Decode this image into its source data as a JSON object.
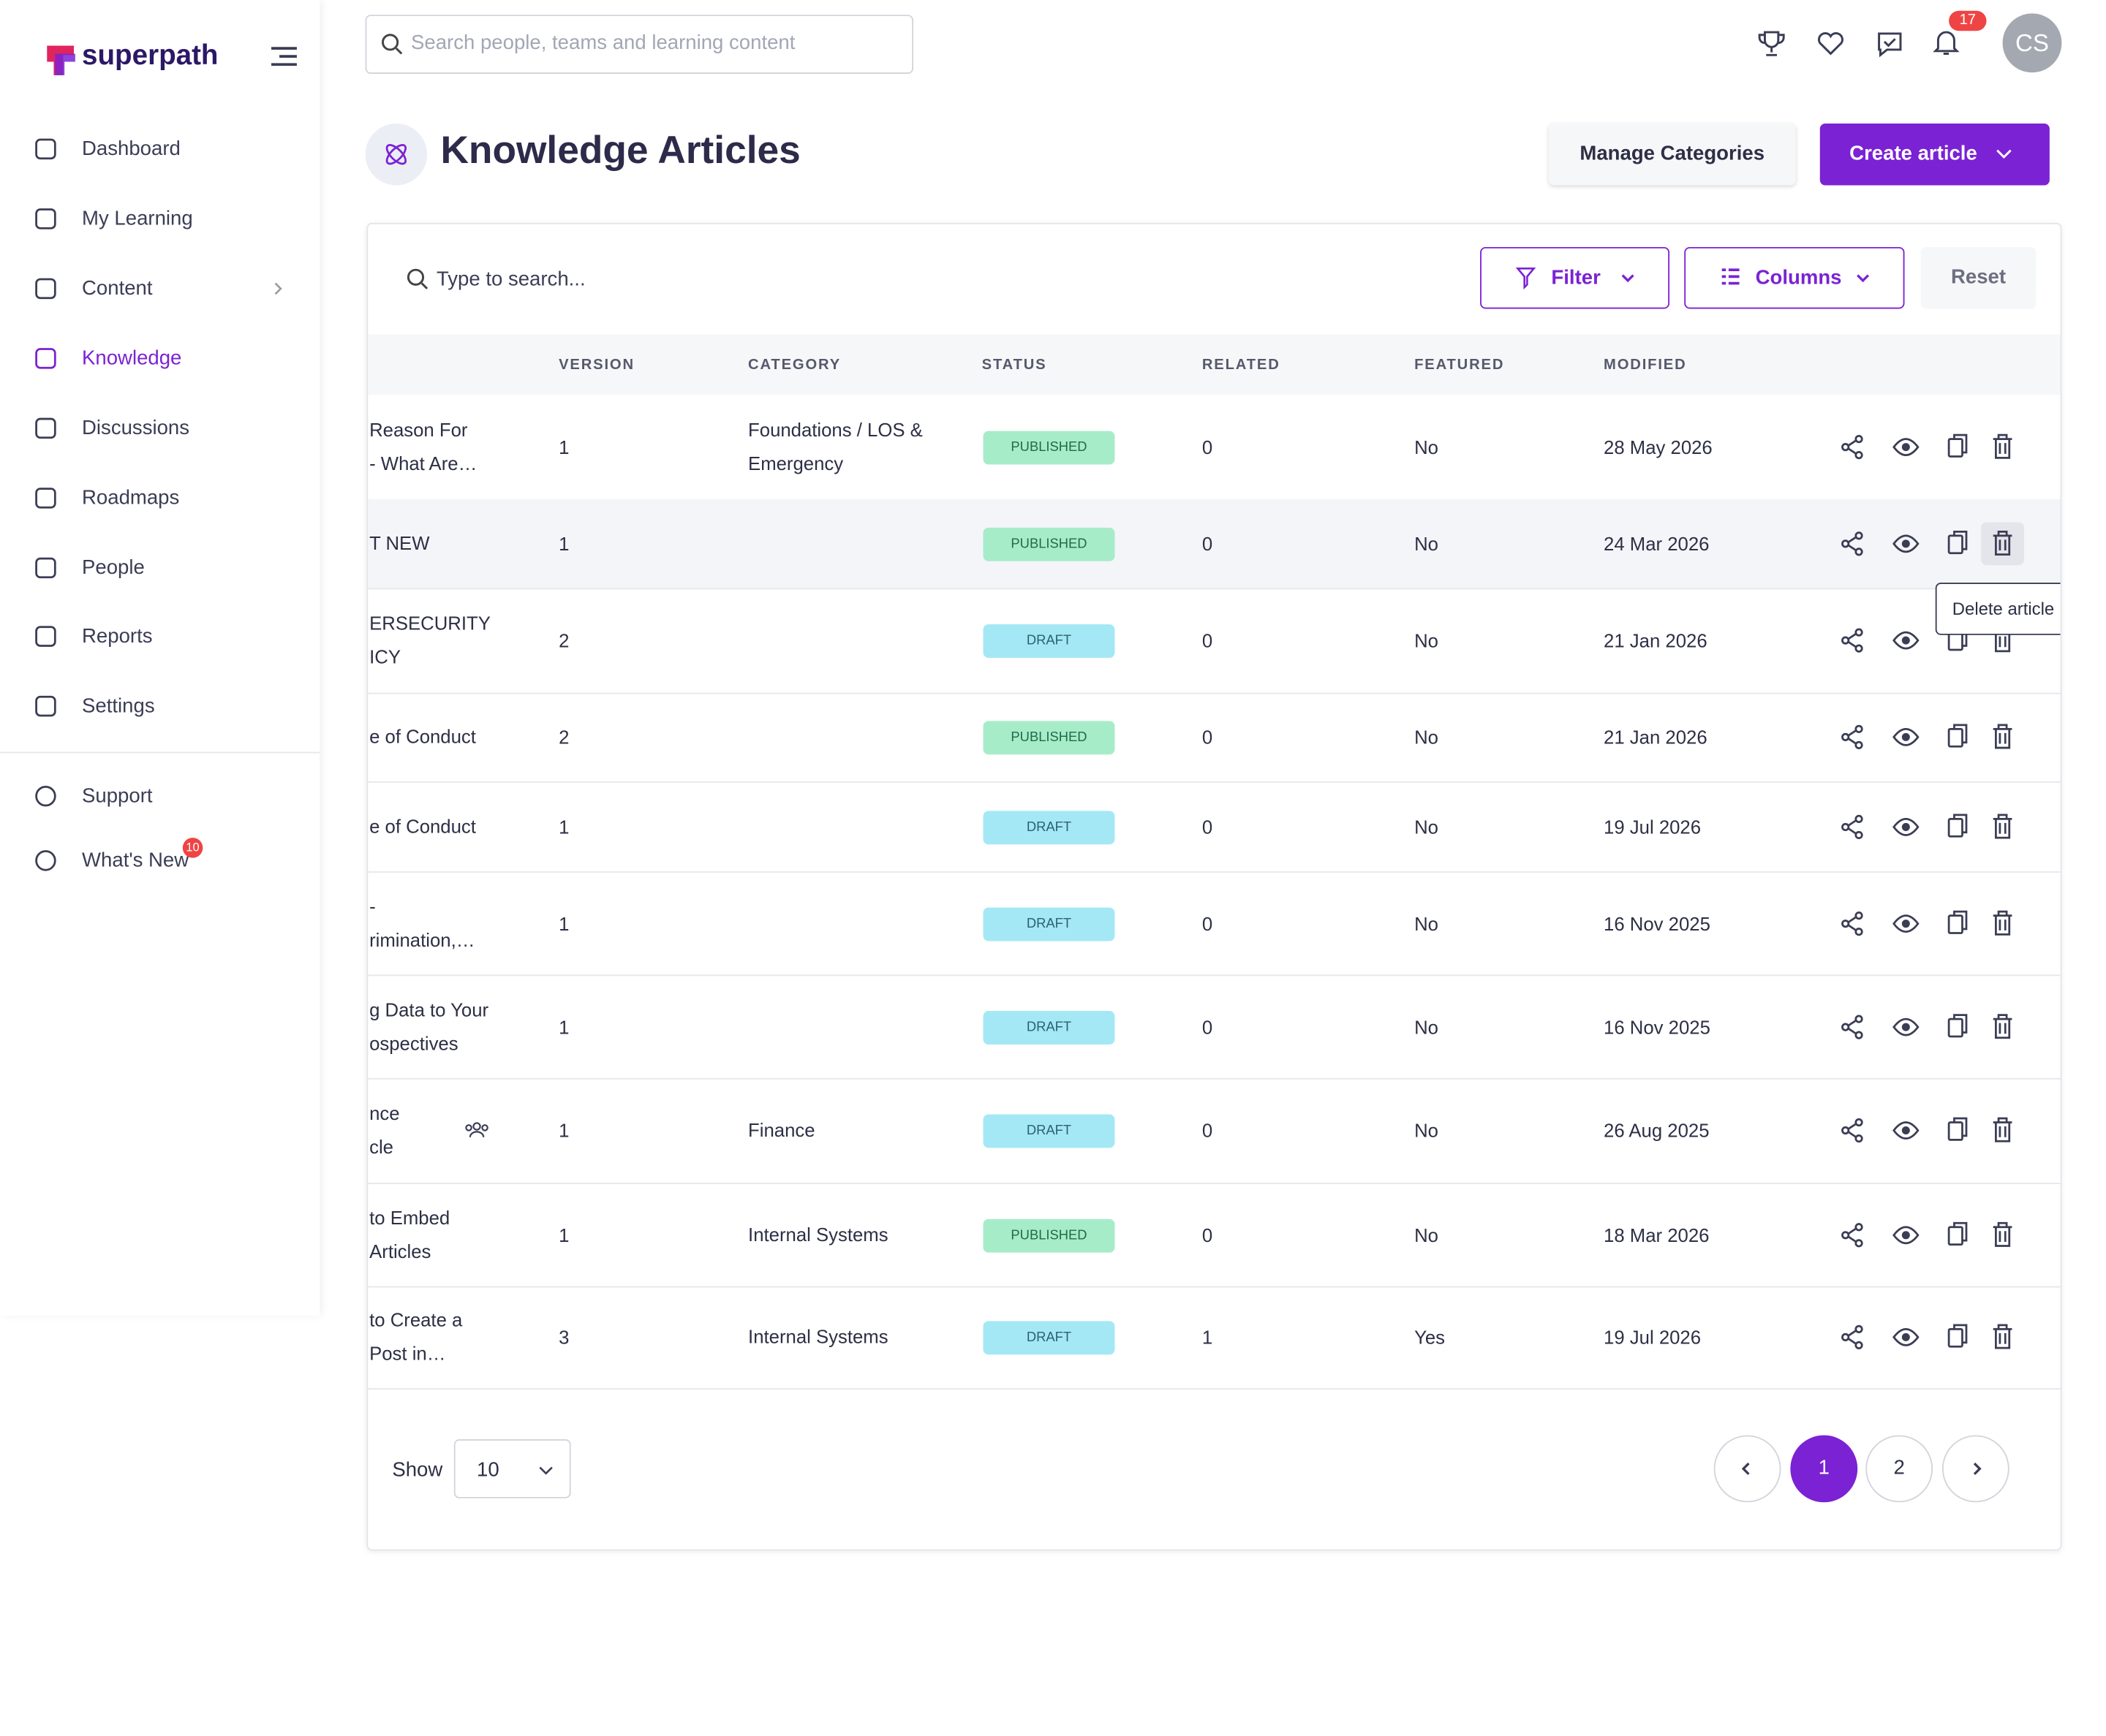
{
  "sidebar": {
    "logo": "superpath",
    "nav": [
      {
        "label": "Dashboard"
      },
      {
        "label": "My Learning"
      },
      {
        "label": "Content"
      },
      {
        "label": "Knowledge"
      },
      {
        "label": "Discussions"
      },
      {
        "label": "Roadmaps"
      },
      {
        "label": "People"
      },
      {
        "label": "Reports"
      },
      {
        "label": "Settings"
      }
    ],
    "secondary": [
      {
        "label": "Support"
      },
      {
        "label": "What's New",
        "badge": "10"
      }
    ]
  },
  "topbar": {
    "search_placeholder": "Search people, teams and learning content",
    "notifications": "17",
    "avatar": "CS"
  },
  "header": {
    "title": "Knowledge Articles",
    "manage_button": "Manage Categories",
    "create_button": "Create article"
  },
  "toolbar": {
    "search_placeholder": "Type to search...",
    "filter": "Filter",
    "columns": "Columns",
    "reset": "Reset"
  },
  "table": {
    "columns": [
      "VERSION",
      "CATEGORY",
      "STATUS",
      "RELATED",
      "FEATURED",
      "MODIFIED"
    ],
    "rows": [
      {
        "title": [
          "Reason For",
          "- What Are…"
        ],
        "version": "1",
        "category": "Foundations / LOS & Emergency",
        "status": "PUBLISHED",
        "related": "0",
        "featured": "No",
        "modified": "28 May 2026"
      },
      {
        "title": [
          "T NEW"
        ],
        "version": "1",
        "category": null,
        "status": "PUBLISHED",
        "related": "0",
        "featured": "No",
        "modified": "24 Mar 2026"
      },
      {
        "title": [
          "ERSECURITY",
          "ICY"
        ],
        "version": "2",
        "category": null,
        "status": "DRAFT",
        "related": "0",
        "featured": "No",
        "modified": "21 Jan 2026"
      },
      {
        "title": [
          "e of Conduct"
        ],
        "version": "2",
        "category": null,
        "status": "PUBLISHED",
        "related": "0",
        "featured": "No",
        "modified": "21 Jan 2026"
      },
      {
        "title": [
          "e of Conduct"
        ],
        "version": "1",
        "category": null,
        "status": "DRAFT",
        "related": "0",
        "featured": "No",
        "modified": "19 Jul 2026"
      },
      {
        "title": [
          "-",
          "rimination,…"
        ],
        "version": "1",
        "category": null,
        "status": "DRAFT",
        "related": "0",
        "featured": "No",
        "modified": "16 Nov 2025"
      },
      {
        "title": [
          "g Data to Your",
          "ospectives"
        ],
        "version": "1",
        "category": null,
        "status": "DRAFT",
        "related": "0",
        "featured": "No",
        "modified": "16 Nov 2025"
      },
      {
        "title": [
          "nce",
          "cle"
        ],
        "version": "1",
        "category": "Finance",
        "status": "DRAFT",
        "related": "0",
        "featured": "No",
        "modified": "26 Aug 2025"
      },
      {
        "title": [
          "to Embed",
          "Articles"
        ],
        "version": "1",
        "category": "Internal Systems",
        "status": "PUBLISHED",
        "related": "0",
        "featured": "No",
        "modified": "18 Mar 2026"
      },
      {
        "title": [
          "to Create a",
          "Post in…"
        ],
        "version": "3",
        "category": "Internal Systems",
        "status": "DRAFT",
        "related": "1",
        "featured": "Yes",
        "modified": "19 Jul 2026"
      }
    ],
    "tooltip": "Delete article"
  },
  "footer": {
    "show_label": "Show",
    "page_size": "10",
    "pages": [
      "1",
      "2"
    ]
  }
}
